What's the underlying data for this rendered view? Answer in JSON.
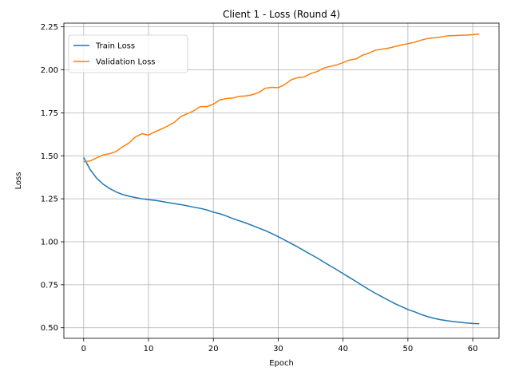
{
  "chart_data": {
    "type": "line",
    "title": "Client 1 - Loss (Round 4)",
    "xlabel": "Epoch",
    "ylabel": "Loss",
    "xlim": [
      -3.05,
      64.05
    ],
    "ylim": [
      0.4385,
      2.2715
    ],
    "xticks": [
      0,
      10,
      20,
      30,
      40,
      50,
      60
    ],
    "yticks": [
      0.5,
      0.75,
      1.0,
      1.25,
      1.5,
      1.75,
      2.0,
      2.25
    ],
    "grid": true,
    "legend_position": "top-left",
    "x": [
      0,
      1,
      2,
      3,
      4,
      5,
      6,
      7,
      8,
      9,
      10,
      11,
      12,
      13,
      14,
      15,
      16,
      17,
      18,
      19,
      20,
      21,
      22,
      23,
      24,
      25,
      26,
      27,
      28,
      29,
      30,
      31,
      32,
      33,
      34,
      35,
      36,
      37,
      38,
      39,
      40,
      41,
      42,
      43,
      44,
      45,
      46,
      47,
      48,
      49,
      50,
      51,
      52,
      53,
      54,
      55,
      56,
      57,
      58,
      59,
      60,
      61
    ],
    "series": [
      {
        "name": "Train Loss",
        "color": "#1f77b4",
        "values": [
          1.49,
          1.42,
          1.37,
          1.335,
          1.31,
          1.29,
          1.275,
          1.265,
          1.257,
          1.25,
          1.245,
          1.241,
          1.235,
          1.228,
          1.222,
          1.216,
          1.209,
          1.201,
          1.194,
          1.185,
          1.172,
          1.163,
          1.15,
          1.135,
          1.122,
          1.109,
          1.095,
          1.08,
          1.065,
          1.048,
          1.03,
          1.01,
          0.99,
          0.97,
          0.948,
          0.927,
          0.906,
          0.883,
          0.86,
          0.838,
          0.815,
          0.792,
          0.769,
          0.745,
          0.722,
          0.7,
          0.68,
          0.66,
          0.64,
          0.623,
          0.606,
          0.593,
          0.578,
          0.565,
          0.555,
          0.547,
          0.541,
          0.536,
          0.532,
          0.528,
          0.525,
          0.523
        ]
      },
      {
        "name": "Validation Loss",
        "color": "#ff7f0e",
        "values": [
          1.465,
          1.47,
          1.488,
          1.505,
          1.512,
          1.525,
          1.552,
          1.575,
          1.61,
          1.628,
          1.62,
          1.64,
          1.656,
          1.674,
          1.695,
          1.728,
          1.745,
          1.762,
          1.786,
          1.786,
          1.8,
          1.825,
          1.833,
          1.836,
          1.846,
          1.848,
          1.855,
          1.868,
          1.893,
          1.898,
          1.896,
          1.914,
          1.942,
          1.955,
          1.958,
          1.978,
          1.99,
          2.01,
          2.02,
          2.028,
          2.042,
          2.057,
          2.063,
          2.085,
          2.097,
          2.114,
          2.12,
          2.126,
          2.135,
          2.145,
          2.152,
          2.16,
          2.172,
          2.182,
          2.186,
          2.19,
          2.197,
          2.199,
          2.201,
          2.202,
          2.204,
          2.208
        ]
      }
    ]
  }
}
